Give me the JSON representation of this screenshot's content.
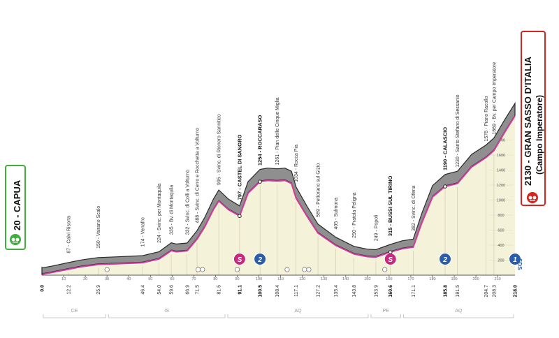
{
  "colors": {
    "road": "#8f8f8f",
    "road_edge": "#2a2a2a",
    "fill": "#f4f2d8",
    "profile_line": "#d63a9a",
    "start_green": "#3fae3a",
    "finish_red": "#d9221c",
    "gpm_cat3_magenta": "#c8287e",
    "gpm_cat2_blue": "#2a5ea8",
    "cat1_blue": "#2a5ea8"
  },
  "start": {
    "altitude": "20",
    "name": "CAPUA",
    "icon": "start-flag-icon"
  },
  "finish": {
    "altitude": "2130",
    "name": "GRAN SASSO D'ITALIA",
    "subtitle": "(Campo Imperatore)",
    "icon": "finish-flag-icon"
  },
  "chart_data": {
    "type": "area",
    "xlabel": "",
    "ylabel": "",
    "xlim": [
      0,
      218
    ],
    "ylim": [
      0,
      2200
    ],
    "y_ticks": [
      200,
      400,
      600,
      800,
      1000,
      1200,
      1400,
      1600,
      1800
    ],
    "x_ticks": [
      "0.0",
      "12.2",
      "25.9",
      "46.4",
      "54.0",
      "59.6",
      "66.9",
      "71.5",
      "81.5",
      "91.1",
      "100.5",
      "108.4",
      "117.1",
      "127.2",
      "135.4",
      "143.8",
      "153.9",
      "160.6",
      "171.1",
      "185.8",
      "191.5",
      "204.7",
      "208.3",
      "218.0"
    ],
    "bold_x_ticks": [
      "0.0",
      "91.1",
      "100.5",
      "160.6",
      "185.8",
      "218.0"
    ],
    "km_marks": [
      10,
      20,
      30,
      40,
      50,
      60,
      70,
      80,
      90,
      100,
      110,
      120,
      130,
      140,
      150,
      160,
      170,
      180,
      190,
      200,
      210
    ],
    "profile": [
      {
        "x": 0,
        "y": 20
      },
      {
        "x": 4,
        "y": 40
      },
      {
        "x": 12.2,
        "y": 87
      },
      {
        "x": 18,
        "y": 120
      },
      {
        "x": 25.9,
        "y": 150
      },
      {
        "x": 35,
        "y": 160
      },
      {
        "x": 46.4,
        "y": 174
      },
      {
        "x": 54,
        "y": 224
      },
      {
        "x": 59.6,
        "y": 335
      },
      {
        "x": 62,
        "y": 320
      },
      {
        "x": 66.9,
        "y": 332
      },
      {
        "x": 71.5,
        "y": 488
      },
      {
        "x": 75,
        "y": 650
      },
      {
        "x": 79,
        "y": 880
      },
      {
        "x": 81.5,
        "y": 995
      },
      {
        "x": 86,
        "y": 880
      },
      {
        "x": 91.1,
        "y": 797
      },
      {
        "x": 95,
        "y": 1100
      },
      {
        "x": 100.5,
        "y": 1254
      },
      {
        "x": 104,
        "y": 1270
      },
      {
        "x": 108.4,
        "y": 1261
      },
      {
        "x": 112,
        "y": 1270
      },
      {
        "x": 115,
        "y": 1230
      },
      {
        "x": 117.1,
        "y": 1034
      },
      {
        "x": 122,
        "y": 800
      },
      {
        "x": 127.2,
        "y": 569
      },
      {
        "x": 135.4,
        "y": 405
      },
      {
        "x": 143.8,
        "y": 290
      },
      {
        "x": 150,
        "y": 255
      },
      {
        "x": 153.9,
        "y": 249
      },
      {
        "x": 160.6,
        "y": 315
      },
      {
        "x": 166,
        "y": 360
      },
      {
        "x": 171.1,
        "y": 382
      },
      {
        "x": 175,
        "y": 700
      },
      {
        "x": 180,
        "y": 1050
      },
      {
        "x": 185.8,
        "y": 1190
      },
      {
        "x": 191.5,
        "y": 1230
      },
      {
        "x": 198,
        "y": 1450
      },
      {
        "x": 204.7,
        "y": 1576
      },
      {
        "x": 208.3,
        "y": 1669
      },
      {
        "x": 213,
        "y": 1900
      },
      {
        "x": 218,
        "y": 2130
      }
    ],
    "points": [
      {
        "x": 12.2,
        "alt": "87",
        "name": "Calvi Risorta",
        "bold": false
      },
      {
        "x": 25.9,
        "alt": "150",
        "name": "Vairano Scalo",
        "bold": false
      },
      {
        "x": 46.4,
        "alt": "174",
        "name": "Venafro",
        "bold": false
      },
      {
        "x": 54.0,
        "alt": "224",
        "name": "Svinc. per Montaquila",
        "bold": false
      },
      {
        "x": 59.6,
        "alt": "335",
        "name": "Bv. di Montaquila",
        "bold": false
      },
      {
        "x": 66.9,
        "alt": "332",
        "name": "Svinc. di Colli a Volturno",
        "bold": false
      },
      {
        "x": 71.5,
        "alt": "488",
        "name": "Svinc. di Cerro e Rocchetta a Volturno",
        "bold": false
      },
      {
        "x": 81.5,
        "alt": "995",
        "name": "Svinc. di Rionero Sannitico",
        "bold": false
      },
      {
        "x": 91.1,
        "alt": "797",
        "name": "CASTEL DI SANGRO",
        "bold": true
      },
      {
        "x": 100.5,
        "alt": "1254",
        "name": "ROCCARASO",
        "bold": true
      },
      {
        "x": 108.4,
        "alt": "1261",
        "name": "Pian delle Cinque Miglia",
        "bold": false
      },
      {
        "x": 117.1,
        "alt": "1034",
        "name": "Rocca Pia",
        "bold": false
      },
      {
        "x": 127.2,
        "alt": "569",
        "name": "Pettorano sul Gizio",
        "bold": false
      },
      {
        "x": 135.4,
        "alt": "405",
        "name": "Sulmona",
        "bold": false
      },
      {
        "x": 143.8,
        "alt": "290",
        "name": "Pratola Peligna",
        "bold": false
      },
      {
        "x": 153.9,
        "alt": "249",
        "name": "Popoli",
        "bold": false
      },
      {
        "x": 160.6,
        "alt": "315",
        "name": "BUSSI SUL TIRINO",
        "bold": true
      },
      {
        "x": 171.1,
        "alt": "382",
        "name": "Svinc. di Ofena",
        "bold": false
      },
      {
        "x": 185.8,
        "alt": "1190",
        "name": "CALASCIO",
        "bold": true
      },
      {
        "x": 191.5,
        "alt": "1230",
        "name": "Santo Stefano di Sessanio",
        "bold": false
      },
      {
        "x": 204.7,
        "alt": "1576",
        "name": "Piano Racollo",
        "bold": false
      },
      {
        "x": 208.3,
        "alt": "1669",
        "name": "Bv. per Campo Imperatore",
        "bold": false
      }
    ],
    "markers": [
      {
        "x": 91.1,
        "type": "sprint",
        "label": "S",
        "color": "#c8287e"
      },
      {
        "x": 100.5,
        "type": "gpm",
        "label": "2",
        "color": "#2a5ea8"
      },
      {
        "x": 160.6,
        "type": "sprint",
        "label": "S",
        "color": "#c8287e"
      },
      {
        "x": 185.8,
        "type": "gpm",
        "label": "2",
        "color": "#2a5ea8"
      },
      {
        "x": 218.0,
        "type": "gpm",
        "label": "1",
        "color": "#2a5ea8"
      }
    ],
    "small_icons": [
      30,
      72,
      74,
      90,
      113,
      121,
      123,
      158
    ],
    "regions": [
      {
        "label": "CE",
        "from": 0,
        "to": 30
      },
      {
        "label": "IS",
        "from": 30,
        "to": 85
      },
      {
        "label": "AQ",
        "from": 85,
        "to": 151
      },
      {
        "label": "PE",
        "from": 151,
        "to": 166
      },
      {
        "label": "AQ",
        "from": 166,
        "to": 218
      }
    ],
    "sponsor": "SDS"
  }
}
